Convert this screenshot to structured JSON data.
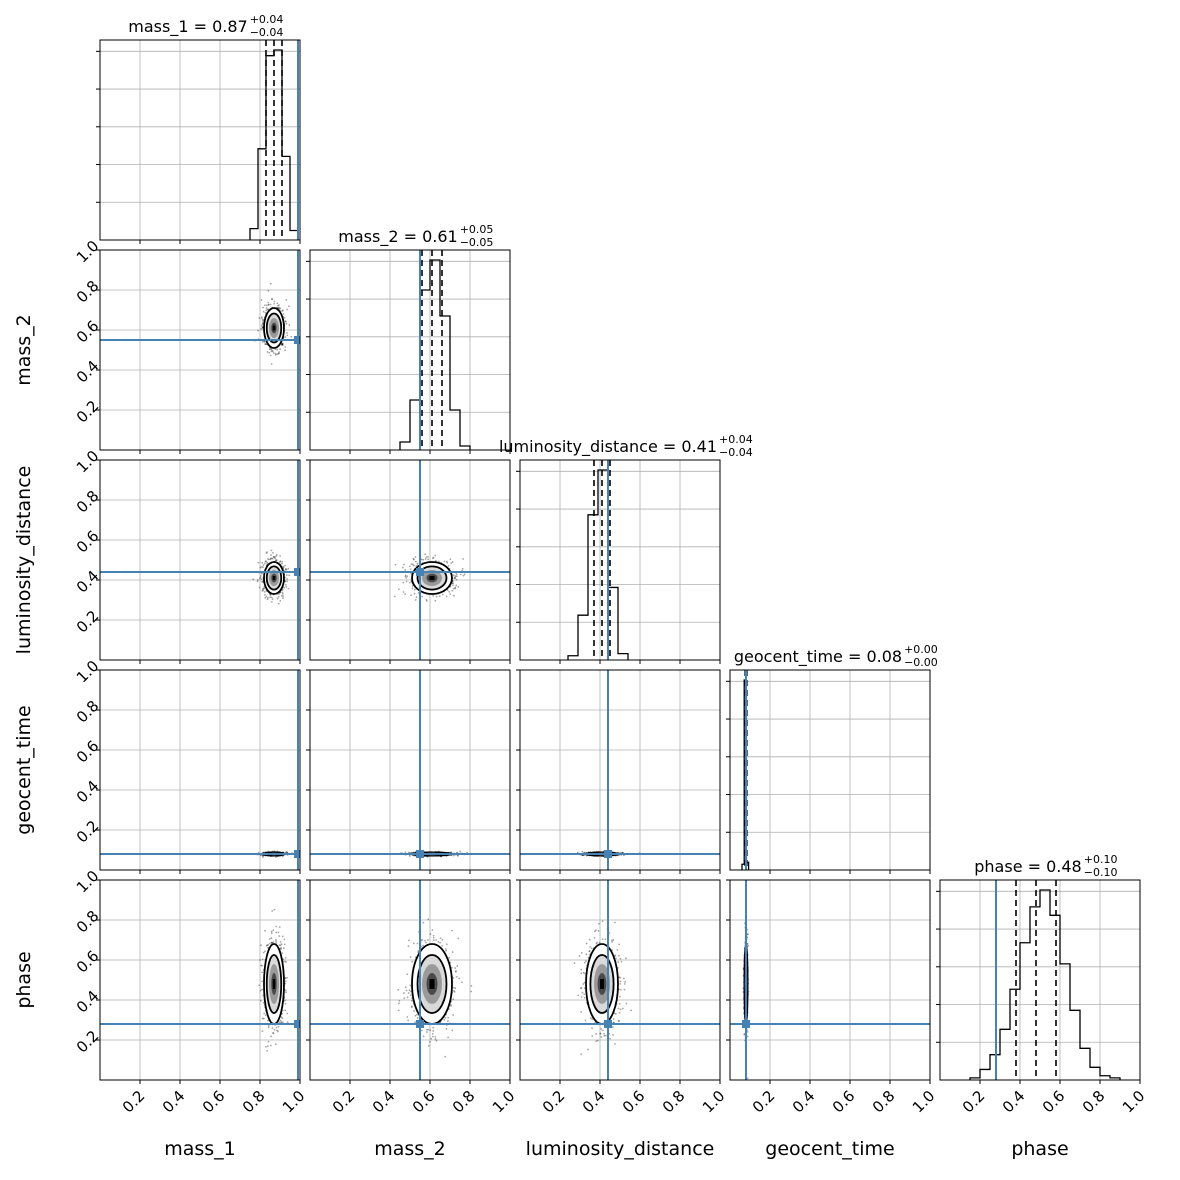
{
  "chart_data": {
    "type": "corner",
    "parameters": [
      "mass_1",
      "mass_2",
      "luminosity_distance",
      "geocent_time",
      "phase"
    ],
    "axis_range": [
      0,
      1
    ],
    "tick_labels": [
      "0.2",
      "0.4",
      "0.6",
      "0.8",
      "1.0"
    ],
    "ticks": [
      0.2,
      0.4,
      0.6,
      0.8,
      1.0
    ],
    "grid": true,
    "colors": {
      "truth": "#4682b4",
      "hist": "#000000",
      "grid": "#b0b0b0"
    },
    "titles": [
      {
        "param": "mass_1",
        "text": "mass_1 = 0.87",
        "plus": "+0.04",
        "minus": "−0.04"
      },
      {
        "param": "mass_2",
        "text": "mass_2 = 0.61",
        "plus": "+0.05",
        "minus": "−0.05"
      },
      {
        "param": "luminosity_distance",
        "text": "luminosity_distance = 0.41",
        "plus": "+0.04",
        "minus": "−0.04"
      },
      {
        "param": "geocent_time",
        "text": "geocent_time = 0.08",
        "plus": "+0.00",
        "minus": "−0.00"
      },
      {
        "param": "phase",
        "text": "phase = 0.48",
        "plus": "+0.10",
        "minus": "−0.10"
      }
    ],
    "posterior": [
      {
        "param": "mass_1",
        "median": 0.87,
        "sd": 0.025,
        "q16": 0.83,
        "q50": 0.87,
        "q84": 0.91,
        "truth": 0.99
      },
      {
        "param": "mass_2",
        "median": 0.61,
        "sd": 0.05,
        "q16": 0.56,
        "q50": 0.61,
        "q84": 0.66,
        "truth": 0.55
      },
      {
        "param": "luminosity_distance",
        "median": 0.41,
        "sd": 0.04,
        "q16": 0.37,
        "q50": 0.41,
        "q84": 0.45,
        "truth": 0.44
      },
      {
        "param": "geocent_time",
        "median": 0.08,
        "sd": 0.004,
        "q16": 0.076,
        "q50": 0.08,
        "q84": 0.084,
        "truth": 0.08
      },
      {
        "param": "phase",
        "median": 0.48,
        "sd": 0.1,
        "q16": 0.38,
        "q50": 0.48,
        "q84": 0.58,
        "truth": 0.28
      }
    ],
    "histograms": [
      {
        "param": "mass_1",
        "bin_edges": [
          0.75,
          0.79,
          0.83,
          0.87,
          0.91,
          0.95,
          0.99
        ],
        "counts": [
          0.06,
          0.48,
          0.97,
          1.0,
          0.44,
          0.05
        ]
      },
      {
        "param": "mass_2",
        "bin_edges": [
          0.45,
          0.5,
          0.55,
          0.6,
          0.65,
          0.7,
          0.75,
          0.8
        ],
        "counts": [
          0.04,
          0.25,
          0.8,
          0.95,
          0.67,
          0.2,
          0.02
        ]
      },
      {
        "param": "luminosity_distance",
        "bin_edges": [
          0.24,
          0.29,
          0.34,
          0.39,
          0.44,
          0.49,
          0.54
        ],
        "counts": [
          0.02,
          0.21,
          0.68,
          0.89,
          0.34,
          0.03
        ]
      },
      {
        "param": "geocent_time",
        "bin_edges": [
          0.06,
          0.071,
          0.082,
          0.093
        ],
        "counts": [
          0.03,
          0.99,
          0.04
        ]
      },
      {
        "param": "phase",
        "bin_edges": [
          0.15,
          0.2,
          0.25,
          0.3,
          0.35,
          0.4,
          0.45,
          0.5,
          0.55,
          0.6,
          0.65,
          0.7,
          0.75,
          0.8,
          0.85,
          0.9
        ],
        "counts": [
          0.01,
          0.05,
          0.12,
          0.24,
          0.43,
          0.65,
          0.82,
          0.9,
          0.78,
          0.55,
          0.33,
          0.15,
          0.06,
          0.02,
          0.01
        ]
      }
    ]
  }
}
